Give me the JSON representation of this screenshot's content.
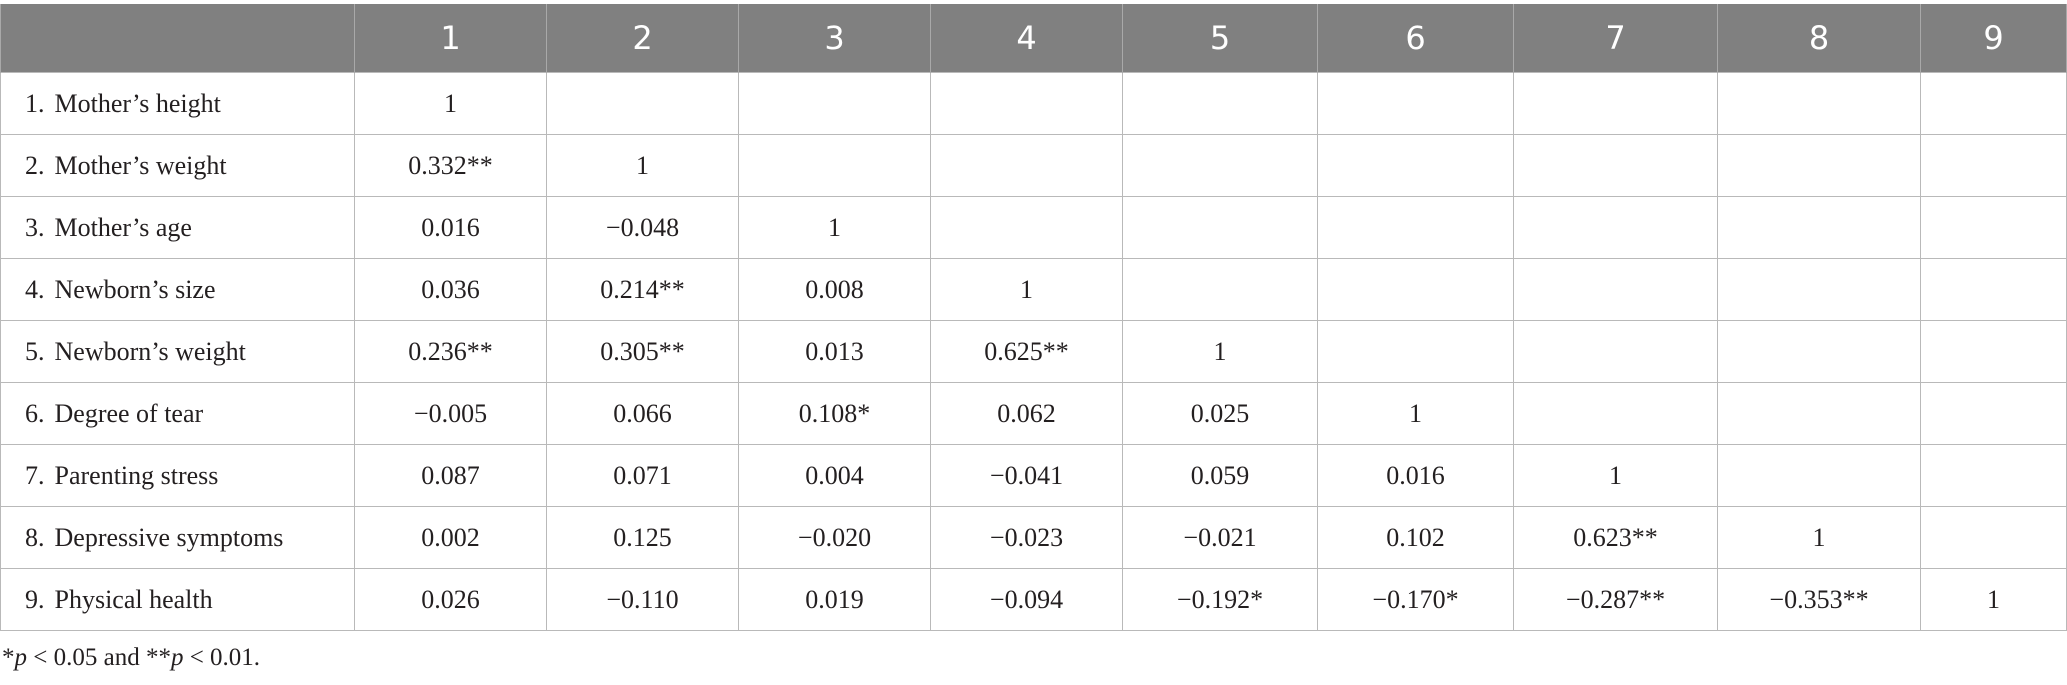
{
  "table": {
    "columns": [
      "",
      "1",
      "2",
      "3",
      "4",
      "5",
      "6",
      "7",
      "8",
      "9"
    ],
    "rows": [
      {
        "num": "1.",
        "label": "Mother’s height",
        "cells": [
          "1",
          "",
          "",
          "",
          "",
          "",
          "",
          "",
          ""
        ]
      },
      {
        "num": "2.",
        "label": "Mother’s weight",
        "cells": [
          "0.332**",
          "1",
          "",
          "",
          "",
          "",
          "",
          "",
          ""
        ]
      },
      {
        "num": "3.",
        "label": "Mother’s age",
        "cells": [
          "0.016",
          "−0.048",
          "1",
          "",
          "",
          "",
          "",
          "",
          ""
        ]
      },
      {
        "num": "4.",
        "label": "Newborn’s size",
        "cells": [
          "0.036",
          "0.214**",
          "0.008",
          "1",
          "",
          "",
          "",
          "",
          ""
        ]
      },
      {
        "num": "5.",
        "label": "Newborn’s weight",
        "cells": [
          "0.236**",
          "0.305**",
          "0.013",
          "0.625**",
          "1",
          "",
          "",
          "",
          ""
        ]
      },
      {
        "num": "6.",
        "label": "Degree of tear",
        "cells": [
          "−0.005",
          "0.066",
          "0.108*",
          "0.062",
          "0.025",
          "1",
          "",
          "",
          ""
        ]
      },
      {
        "num": "7.",
        "label": "Parenting stress",
        "cells": [
          "0.087",
          "0.071",
          "0.004",
          "−0.041",
          "0.059",
          "0.016",
          "1",
          "",
          ""
        ]
      },
      {
        "num": "8.",
        "label": "Depressive symptoms",
        "cells": [
          "0.002",
          "0.125",
          "−0.020",
          "−0.023",
          "−0.021",
          "0.102",
          "0.623**",
          "1",
          ""
        ]
      },
      {
        "num": "9.",
        "label": "Physical health",
        "cells": [
          "0.026",
          "−0.110",
          "0.019",
          "−0.094",
          "−0.192*",
          "−0.170*",
          "−0.287**",
          "−0.353**",
          "1"
        ]
      }
    ]
  },
  "footnote": {
    "star1": "*",
    "p1": "p",
    "text1": " < 0.05 and **",
    "p2": "p",
    "text2": " < 0.01."
  }
}
